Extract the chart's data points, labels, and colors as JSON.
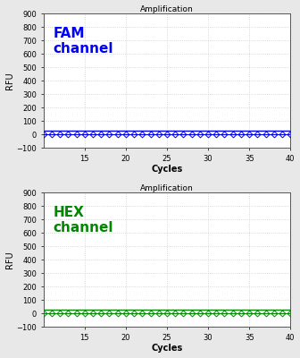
{
  "title": "Amplification",
  "xlabel": "Cycles",
  "ylabel": "RFU",
  "xlim": [
    10,
    40
  ],
  "ylim": [
    -100,
    900
  ],
  "yticks": [
    -100,
    0,
    100,
    200,
    300,
    400,
    500,
    600,
    700,
    800,
    900
  ],
  "xticks": [
    15,
    20,
    25,
    30,
    35,
    40
  ],
  "panel1": {
    "label": "FAM\nchannel",
    "label_color": "#0000FF",
    "line_color": "#0000DD",
    "marker_color": "#0000DD",
    "threshold_y": 28
  },
  "panel2": {
    "label": "HEX\nchannel",
    "label_color": "#008800",
    "line_color": "#008800",
    "marker_color": "#008800",
    "threshold_y": 28
  },
  "data_y_flat": 0,
  "cycles_start": 10,
  "cycles_end": 40,
  "bg_color": "#ffffff",
  "grid_color": "#cccccc",
  "fig_bg_color": "#e8e8e8"
}
